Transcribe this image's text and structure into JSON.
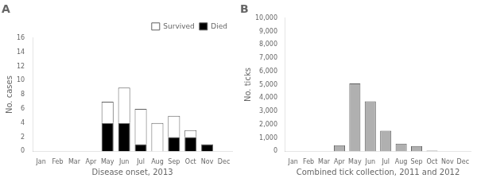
{
  "chart_data": [
    {
      "type": "bar",
      "title": "A",
      "stacked": true,
      "categories": [
        "Jan",
        "Feb",
        "Mar",
        "Apr",
        "May",
        "Jun",
        "Jul",
        "Aug",
        "Sep",
        "Oct",
        "Nov",
        "Dec"
      ],
      "series": [
        {
          "name": "Died",
          "color": "#000000",
          "values": [
            0,
            0,
            0,
            0,
            4,
            4,
            1,
            0,
            2,
            2,
            1,
            0
          ]
        },
        {
          "name": "Survived",
          "color": "#ffffff",
          "values": [
            0,
            0,
            0,
            0,
            3,
            5,
            5,
            4,
            3,
            1,
            0,
            0
          ]
        }
      ],
      "ylabel": "No. cases",
      "xlabel": "Disease onset, 2013",
      "ylim": [
        0,
        16
      ],
      "yticks": [
        0,
        2,
        4,
        6,
        8,
        10,
        12,
        14,
        16
      ],
      "grid": false,
      "legend": "upper right"
    },
    {
      "type": "bar",
      "title": "B",
      "categories": [
        "Jan",
        "Feb",
        "Mar",
        "Apr",
        "May",
        "Jun",
        "Jul",
        "Aug",
        "Sep",
        "Oct",
        "Nov",
        "Dec"
      ],
      "values": [
        0,
        0,
        0,
        450,
        5100,
        3750,
        1550,
        580,
        390,
        50,
        0,
        0
      ],
      "color": "#b0b0b0",
      "ylabel": "No. ticks",
      "xlabel": "Combined tick collection, 2011 and 2012",
      "ylim": [
        0,
        10000
      ],
      "yticks": [
        0,
        {
          "value": 1000,
          "label": "1,000"
        },
        {
          "value": 2000,
          "label": "2,000"
        },
        {
          "value": 3000,
          "label": "3,000"
        },
        {
          "value": 4000,
          "label": "4,000"
        },
        {
          "value": 5000,
          "label": "5,000"
        },
        {
          "value": 6000,
          "label": "6,000"
        },
        {
          "value": 7000,
          "label": "7,000"
        },
        {
          "value": 8000,
          "label": "8,000"
        },
        {
          "value": 9000,
          "label": "9,000"
        },
        {
          "value": 10000,
          "label": "10,000"
        }
      ],
      "grid": false
    }
  ]
}
